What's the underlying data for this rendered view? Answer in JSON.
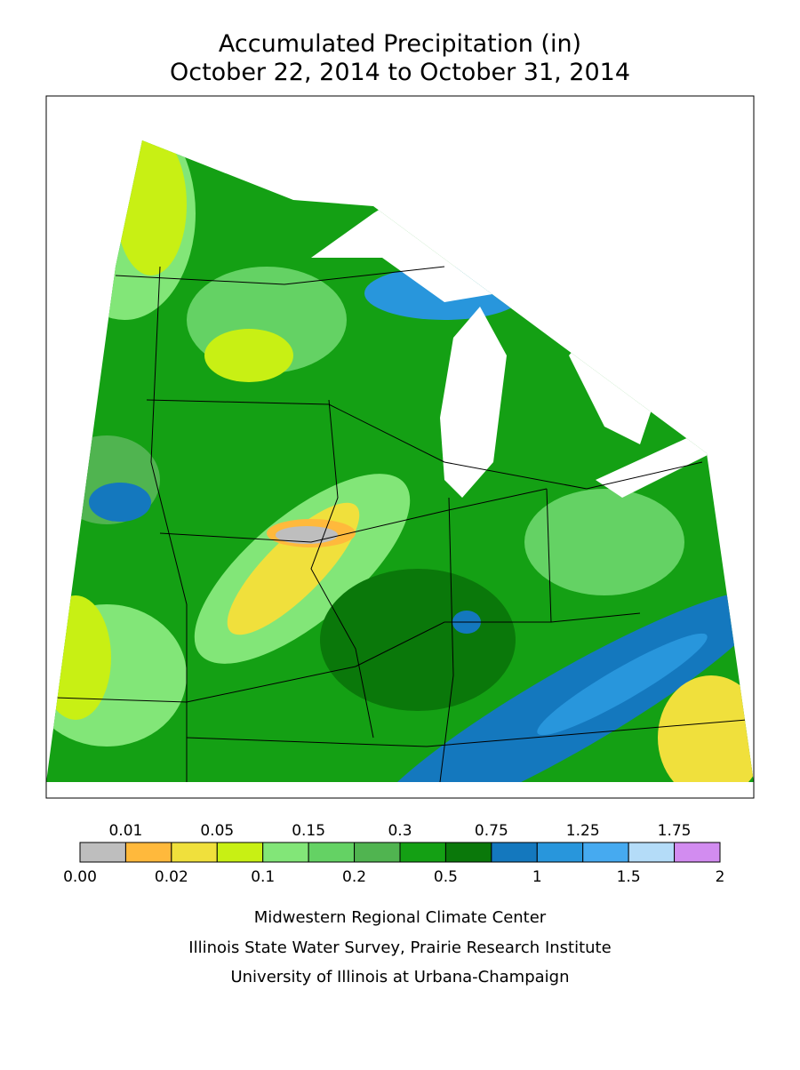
{
  "header": {
    "title_line1": "Accumulated Precipitation (in)",
    "title_line2": "October 22, 2014 to October 31, 2014"
  },
  "legend": {
    "boundary_labels": [
      "0.00",
      "0.01",
      "0.02",
      "0.05",
      "0.1",
      "0.15",
      "0.2",
      "0.3",
      "0.5",
      "0.75",
      "1",
      "1.25",
      "1.5",
      "1.75",
      "2"
    ],
    "colors": [
      "#bebebe",
      "#ffb93c",
      "#f0e03c",
      "#c8f014",
      "#82e678",
      "#64d264",
      "#50b450",
      "#14a014",
      "#0a780a",
      "#1478be",
      "#2896dc",
      "#46aaf0",
      "#b4dcf8",
      "#d28cf0"
    ]
  },
  "footer": {
    "line1": "Midwestern Regional Climate Center",
    "line2": "Illinois State Water Survey, Prairie Research Institute",
    "line3": "University of Illinois at Urbana-Champaign"
  }
}
